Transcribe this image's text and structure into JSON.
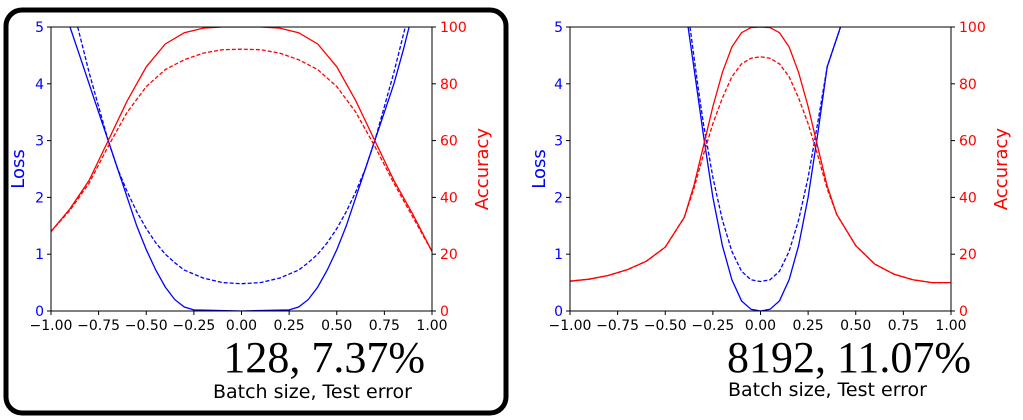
{
  "colors": {
    "loss": "#0000ff",
    "accuracy": "#ff0000",
    "axis": "#000000",
    "frame": "#000000"
  },
  "chart_data": [
    {
      "type": "line",
      "highlighted": true,
      "caption_values": "128, 7.37%",
      "caption_labels": "Batch size,  Test error",
      "xlim": [
        -1.0,
        1.0
      ],
      "x_ticks": [
        "−1.00",
        "−0.75",
        "−0.50",
        "−0.25",
        "0.00",
        "0.25",
        "0.50",
        "0.75",
        "1.00"
      ],
      "ylabel_left": "Loss",
      "ylim_left": [
        0,
        5
      ],
      "y_ticks_left": [
        "0",
        "1",
        "2",
        "3",
        "4",
        "5"
      ],
      "ylabel_right": "Accuracy",
      "ylim_right": [
        0,
        100
      ],
      "y_ticks_right": [
        "0",
        "20",
        "40",
        "60",
        "80",
        "100"
      ],
      "series": [
        {
          "axis": "left",
          "style": "solid",
          "x": [
            -0.9,
            -0.85,
            -0.8,
            -0.75,
            -0.7,
            -0.65,
            -0.6,
            -0.55,
            -0.5,
            -0.45,
            -0.4,
            -0.35,
            -0.3,
            -0.25,
            0.0,
            0.25,
            0.3,
            0.35,
            0.4,
            0.45,
            0.5,
            0.55,
            0.6,
            0.65,
            0.7,
            0.75,
            0.8,
            0.85,
            0.88
          ],
          "y": [
            5.0,
            4.5,
            4.0,
            3.5,
            3.0,
            2.5,
            2.0,
            1.5,
            1.08,
            0.72,
            0.42,
            0.2,
            0.07,
            0.02,
            0.0,
            0.02,
            0.07,
            0.2,
            0.42,
            0.72,
            1.08,
            1.5,
            2.0,
            2.5,
            3.0,
            3.5,
            4.0,
            4.6,
            5.0
          ]
        },
        {
          "axis": "left",
          "style": "dashed",
          "x": [
            -0.86,
            -0.8,
            -0.75,
            -0.7,
            -0.65,
            -0.6,
            -0.55,
            -0.5,
            -0.45,
            -0.4,
            -0.35,
            -0.3,
            -0.2,
            -0.1,
            0.0,
            0.1,
            0.2,
            0.3,
            0.35,
            0.4,
            0.45,
            0.5,
            0.55,
            0.6,
            0.65,
            0.7,
            0.75,
            0.8,
            0.86
          ],
          "y": [
            5.0,
            4.2,
            3.6,
            3.0,
            2.5,
            2.1,
            1.75,
            1.45,
            1.2,
            1.0,
            0.85,
            0.72,
            0.58,
            0.5,
            0.48,
            0.5,
            0.58,
            0.72,
            0.85,
            1.0,
            1.2,
            1.45,
            1.75,
            2.1,
            2.5,
            3.0,
            3.6,
            4.2,
            5.0
          ]
        },
        {
          "axis": "right",
          "style": "solid",
          "x": [
            -1.0,
            -0.9,
            -0.8,
            -0.7,
            -0.6,
            -0.5,
            -0.4,
            -0.3,
            -0.2,
            -0.1,
            0.0,
            0.1,
            0.2,
            0.3,
            0.4,
            0.5,
            0.6,
            0.7,
            0.8,
            0.9,
            1.0
          ],
          "y": [
            28,
            36,
            46,
            60,
            74,
            86,
            94,
            98,
            99.6,
            100,
            100,
            100,
            99.6,
            98,
            94,
            86,
            74,
            60,
            46,
            34,
            21
          ]
        },
        {
          "axis": "right",
          "style": "dashed",
          "x": [
            -1.0,
            -0.9,
            -0.8,
            -0.7,
            -0.6,
            -0.5,
            -0.4,
            -0.3,
            -0.2,
            -0.1,
            0.0,
            0.1,
            0.2,
            0.3,
            0.4,
            0.5,
            0.6,
            0.7,
            0.8,
            0.9,
            1.0
          ],
          "y": [
            28,
            35.5,
            45,
            58,
            70,
            79,
            85,
            88.5,
            90.8,
            92,
            92.2,
            92,
            90.8,
            88.5,
            85,
            79,
            70,
            58,
            45,
            33,
            21
          ]
        }
      ]
    },
    {
      "type": "line",
      "highlighted": false,
      "caption_values": "8192, 11.07%",
      "caption_labels": "Batch size,  Test error",
      "xlim": [
        -1.0,
        1.0
      ],
      "x_ticks": [
        "−1.00",
        "−0.75",
        "−0.50",
        "−0.25",
        "0.00",
        "0.25",
        "0.50",
        "0.75",
        "1.00"
      ],
      "ylabel_left": "Loss",
      "ylim_left": [
        0,
        5
      ],
      "y_ticks_left": [
        "0",
        "1",
        "2",
        "3",
        "4",
        "5"
      ],
      "ylabel_right": "Accuracy",
      "ylim_right": [
        0,
        100
      ],
      "y_ticks_right": [
        "0",
        "20",
        "40",
        "60",
        "80",
        "100"
      ],
      "series": [
        {
          "axis": "left",
          "style": "solid",
          "x": [
            -0.38,
            -0.35,
            -0.3,
            -0.25,
            -0.2,
            -0.15,
            -0.1,
            -0.05,
            0.0,
            0.05,
            0.1,
            0.15,
            0.2,
            0.25,
            0.3,
            0.35,
            0.42
          ],
          "y": [
            5.0,
            4.3,
            3.1,
            2.0,
            1.15,
            0.55,
            0.18,
            0.03,
            0.0,
            0.03,
            0.18,
            0.55,
            1.15,
            2.0,
            3.1,
            4.3,
            5.0
          ]
        },
        {
          "axis": "left",
          "style": "dashed",
          "x": [
            -0.37,
            -0.33,
            -0.3,
            -0.25,
            -0.2,
            -0.15,
            -0.1,
            -0.05,
            0.0,
            0.05,
            0.1,
            0.15,
            0.2,
            0.25,
            0.3,
            0.35,
            0.42
          ],
          "y": [
            5.0,
            4.0,
            3.3,
            2.35,
            1.6,
            1.05,
            0.7,
            0.55,
            0.52,
            0.55,
            0.7,
            1.05,
            1.6,
            2.35,
            3.3,
            4.3,
            5.0
          ]
        },
        {
          "axis": "right",
          "style": "solid",
          "x": [
            -1.0,
            -0.9,
            -0.8,
            -0.7,
            -0.6,
            -0.5,
            -0.4,
            -0.35,
            -0.3,
            -0.25,
            -0.2,
            -0.15,
            -0.1,
            -0.05,
            0.0,
            0.05,
            0.1,
            0.15,
            0.2,
            0.25,
            0.3,
            0.35,
            0.4,
            0.5,
            0.6,
            0.7,
            0.8,
            0.9,
            1.0
          ],
          "y": [
            10.5,
            11.2,
            12.5,
            14.5,
            17.5,
            22.5,
            33,
            44,
            58,
            72,
            84,
            93,
            98,
            99.8,
            100,
            99.8,
            98,
            93,
            84,
            72,
            58,
            44,
            34,
            23,
            16.5,
            13,
            11,
            10,
            10
          ]
        },
        {
          "axis": "right",
          "style": "dashed",
          "x": [
            -1.0,
            -0.9,
            -0.8,
            -0.7,
            -0.6,
            -0.5,
            -0.4,
            -0.35,
            -0.3,
            -0.25,
            -0.2,
            -0.15,
            -0.1,
            -0.05,
            0.0,
            0.05,
            0.1,
            0.15,
            0.2,
            0.25,
            0.3,
            0.35,
            0.4,
            0.5,
            0.6,
            0.7,
            0.8,
            0.9,
            1.0
          ],
          "y": [
            10.5,
            11.2,
            12.5,
            14.5,
            17.5,
            22.5,
            33,
            43,
            55,
            66,
            75,
            82.5,
            87,
            89,
            89.5,
            89,
            87,
            82.5,
            75,
            66,
            55,
            43,
            34,
            23,
            16.5,
            13,
            11,
            10,
            10
          ]
        }
      ]
    }
  ]
}
